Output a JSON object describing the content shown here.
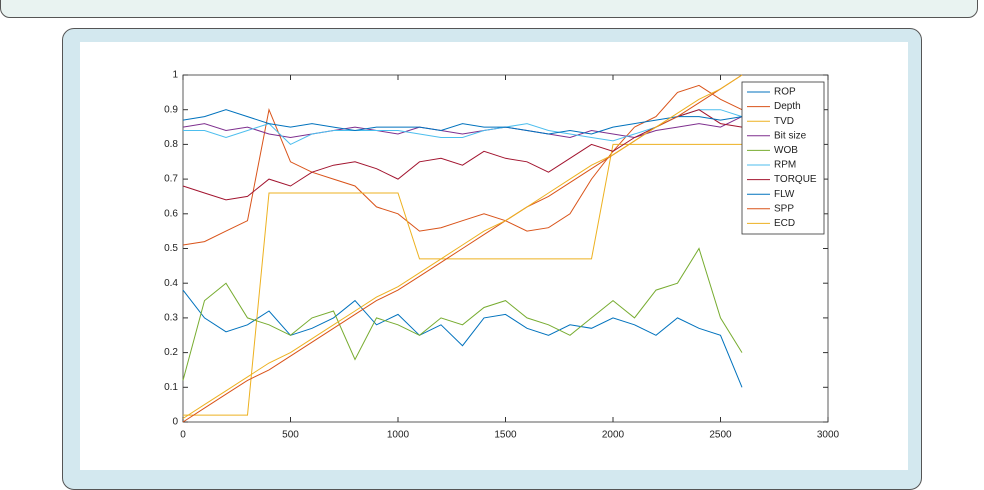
{
  "chart_data": {
    "type": "line",
    "x": [
      0,
      100,
      200,
      300,
      400,
      500,
      600,
      700,
      800,
      900,
      1000,
      1100,
      1200,
      1300,
      1400,
      1500,
      1600,
      1700,
      1800,
      1900,
      2000,
      2100,
      2200,
      2300,
      2400,
      2500,
      2600
    ],
    "xlim": [
      0,
      3000
    ],
    "xticks": [
      0,
      500,
      1000,
      1500,
      2000,
      2500,
      3000
    ],
    "ylim": [
      0,
      1
    ],
    "yticks": [
      0,
      0.1,
      0.2,
      0.3,
      0.4,
      0.5,
      0.6,
      0.7,
      0.8,
      0.9,
      1
    ],
    "grid": false,
    "legend": "northeast",
    "series": [
      {
        "name": "ROP",
        "color": "#0072bd",
        "values": [
          0.38,
          0.3,
          0.26,
          0.28,
          0.32,
          0.25,
          0.27,
          0.3,
          0.35,
          0.28,
          0.31,
          0.25,
          0.28,
          0.22,
          0.3,
          0.31,
          0.27,
          0.25,
          0.28,
          0.27,
          0.3,
          0.28,
          0.25,
          0.3,
          0.27,
          0.25,
          0.1
        ]
      },
      {
        "name": "Depth",
        "color": "#d95319",
        "values": [
          0.51,
          0.52,
          0.55,
          0.58,
          0.9,
          0.75,
          0.72,
          0.7,
          0.68,
          0.62,
          0.6,
          0.55,
          0.56,
          0.58,
          0.6,
          0.58,
          0.55,
          0.56,
          0.6,
          0.7,
          0.78,
          0.85,
          0.88,
          0.95,
          0.97,
          0.93,
          0.9
        ]
      },
      {
        "name": "TVD",
        "color": "#edb120",
        "values": [
          0.02,
          0.02,
          0.02,
          0.02,
          0.66,
          0.66,
          0.66,
          0.66,
          0.66,
          0.66,
          0.66,
          0.47,
          0.47,
          0.47,
          0.47,
          0.47,
          0.47,
          0.47,
          0.47,
          0.47,
          0.8,
          0.8,
          0.8,
          0.8,
          0.8,
          0.8,
          0.8
        ]
      },
      {
        "name": "Bit size",
        "color": "#7e2f8e",
        "values": [
          0.85,
          0.86,
          0.84,
          0.85,
          0.83,
          0.82,
          0.83,
          0.84,
          0.85,
          0.84,
          0.83,
          0.85,
          0.84,
          0.83,
          0.84,
          0.85,
          0.84,
          0.83,
          0.82,
          0.84,
          0.83,
          0.82,
          0.84,
          0.85,
          0.86,
          0.85,
          0.88
        ]
      },
      {
        "name": "WOB",
        "color": "#77ac30",
        "values": [
          0.12,
          0.35,
          0.4,
          0.3,
          0.28,
          0.25,
          0.3,
          0.32,
          0.18,
          0.3,
          0.28,
          0.25,
          0.3,
          0.28,
          0.33,
          0.35,
          0.3,
          0.28,
          0.25,
          0.3,
          0.35,
          0.3,
          0.38,
          0.4,
          0.5,
          0.3,
          0.2
        ]
      },
      {
        "name": "RPM",
        "color": "#4dbeee",
        "values": [
          0.84,
          0.84,
          0.82,
          0.84,
          0.86,
          0.8,
          0.83,
          0.84,
          0.84,
          0.84,
          0.84,
          0.83,
          0.82,
          0.82,
          0.84,
          0.85,
          0.86,
          0.84,
          0.83,
          0.82,
          0.81,
          0.83,
          0.85,
          0.88,
          0.9,
          0.9,
          0.88
        ]
      },
      {
        "name": "TORQUE",
        "color": "#a2142f",
        "values": [
          0.68,
          0.66,
          0.64,
          0.65,
          0.7,
          0.68,
          0.72,
          0.74,
          0.75,
          0.73,
          0.7,
          0.75,
          0.76,
          0.74,
          0.78,
          0.76,
          0.75,
          0.72,
          0.76,
          0.8,
          0.78,
          0.82,
          0.85,
          0.88,
          0.9,
          0.86,
          0.85
        ]
      },
      {
        "name": "FLW",
        "color": "#0072bd",
        "values": [
          0.87,
          0.88,
          0.9,
          0.88,
          0.86,
          0.85,
          0.86,
          0.85,
          0.84,
          0.85,
          0.85,
          0.85,
          0.84,
          0.86,
          0.85,
          0.85,
          0.84,
          0.83,
          0.84,
          0.83,
          0.85,
          0.86,
          0.87,
          0.88,
          0.88,
          0.87,
          0.88
        ]
      },
      {
        "name": "SPP",
        "color": "#d95319",
        "values": [
          0,
          0.04,
          0.08,
          0.12,
          0.15,
          0.19,
          0.23,
          0.27,
          0.31,
          0.35,
          0.38,
          0.42,
          0.46,
          0.5,
          0.54,
          0.58,
          0.62,
          0.65,
          0.69,
          0.73,
          0.77,
          0.81,
          0.85,
          0.88,
          0.92,
          0.96,
          1
        ]
      },
      {
        "name": "ECD",
        "color": "#edb120",
        "values": [
          0.01,
          0.05,
          0.09,
          0.13,
          0.17,
          0.2,
          0.24,
          0.28,
          0.32,
          0.36,
          0.39,
          0.43,
          0.47,
          0.51,
          0.55,
          0.58,
          0.62,
          0.66,
          0.7,
          0.74,
          0.77,
          0.81,
          0.85,
          0.89,
          0.93,
          0.96,
          1
        ]
      }
    ]
  }
}
